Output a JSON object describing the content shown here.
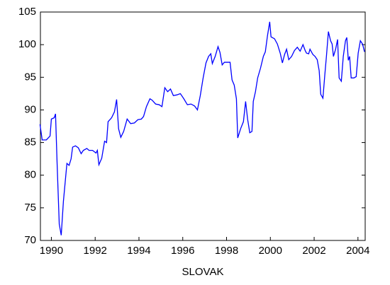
{
  "chart_data": {
    "type": "line",
    "xlabel": "SLOVAK",
    "color": "#0000ff",
    "x": [
      1989.48,
      1989.58,
      1989.77,
      1989.94,
      1990.0,
      1990.13,
      1990.19,
      1990.26,
      1990.36,
      1990.45,
      1990.55,
      1990.71,
      1990.81,
      1990.9,
      1990.97,
      1991.1,
      1991.23,
      1991.36,
      1991.46,
      1991.62,
      1991.72,
      1991.88,
      1992.04,
      1992.1,
      1992.17,
      1992.3,
      1992.43,
      1992.52,
      1992.59,
      1992.75,
      1992.88,
      1992.98,
      1993.07,
      1993.17,
      1993.3,
      1993.46,
      1993.62,
      1993.79,
      1993.95,
      1994.11,
      1994.21,
      1994.34,
      1994.5,
      1994.6,
      1994.76,
      1994.92,
      1995.05,
      1995.18,
      1995.31,
      1995.44,
      1995.57,
      1995.73,
      1995.89,
      1996.05,
      1996.21,
      1996.38,
      1996.54,
      1996.67,
      1996.8,
      1996.93,
      1997.06,
      1997.18,
      1997.28,
      1997.35,
      1997.48,
      1997.61,
      1997.7,
      1997.8,
      1997.9,
      1998.06,
      1998.16,
      1998.25,
      1998.35,
      1998.45,
      1998.51,
      1998.64,
      1998.77,
      1998.87,
      1998.96,
      1999.06,
      1999.16,
      1999.22,
      1999.32,
      1999.42,
      1999.55,
      1999.68,
      1999.77,
      1999.87,
      1999.97,
      2000.03,
      2000.19,
      2000.32,
      2000.45,
      2000.55,
      2000.65,
      2000.74,
      2000.84,
      2000.97,
      2001.1,
      2001.23,
      2001.36,
      2001.49,
      2001.59,
      2001.65,
      2001.75,
      2001.81,
      2001.94,
      2002.04,
      2002.14,
      2002.23,
      2002.3,
      2002.4,
      2002.49,
      2002.56,
      2002.65,
      2002.75,
      2002.82,
      2002.88,
      2002.98,
      2003.07,
      2003.14,
      2003.24,
      2003.33,
      2003.43,
      2003.49,
      2003.56,
      2003.62,
      2003.69,
      2003.82,
      2003.92,
      2004.01,
      2004.11,
      2004.21,
      2004.3
    ],
    "values": [
      87.8,
      85.4,
      85.4,
      86.0,
      88.6,
      88.8,
      89.4,
      82.0,
      72.5,
      70.8,
      76.0,
      81.8,
      81.5,
      82.5,
      84.3,
      84.5,
      84.2,
      83.3,
      83.8,
      84.1,
      83.8,
      83.8,
      83.4,
      83.8,
      81.6,
      82.6,
      85.2,
      85.0,
      88.2,
      88.8,
      89.7,
      91.6,
      87.1,
      85.8,
      86.7,
      88.6,
      87.9,
      88.0,
      88.5,
      88.6,
      89.0,
      90.5,
      91.7,
      91.5,
      90.9,
      90.8,
      90.5,
      93.4,
      92.8,
      93.2,
      92.2,
      92.3,
      92.5,
      91.7,
      90.8,
      90.9,
      90.6,
      90.0,
      92.2,
      94.9,
      97.2,
      98.2,
      98.6,
      97.1,
      98.2,
      99.7,
      98.8,
      96.9,
      97.3,
      97.3,
      97.3,
      94.6,
      93.8,
      91.7,
      85.7,
      87.1,
      88.2,
      91.3,
      88.6,
      86.5,
      86.7,
      91.3,
      92.8,
      94.9,
      96.4,
      98.2,
      98.9,
      101.4,
      103.5,
      101.2,
      100.9,
      100.1,
      98.7,
      97.2,
      98.5,
      99.3,
      97.7,
      98.2,
      99.1,
      99.6,
      99.0,
      100.0,
      99.1,
      98.7,
      98.6,
      99.3,
      98.5,
      98.2,
      97.7,
      96.0,
      92.4,
      91.8,
      95.5,
      98.2,
      102.0,
      100.6,
      100.1,
      98.2,
      99.3,
      100.8,
      94.9,
      94.4,
      98.2,
      100.6,
      101.1,
      97.6,
      98.2,
      94.9,
      94.9,
      95.1,
      98.7,
      100.6,
      100.1,
      98.9
    ],
    "xlim": [
      1989.5,
      2004.33
    ],
    "xticks": [
      1990,
      1992,
      1994,
      1996,
      1998,
      2000,
      2002,
      2004
    ],
    "ylim": [
      70,
      105
    ],
    "yticks": [
      70,
      75,
      80,
      85,
      90,
      95,
      100,
      105
    ]
  }
}
